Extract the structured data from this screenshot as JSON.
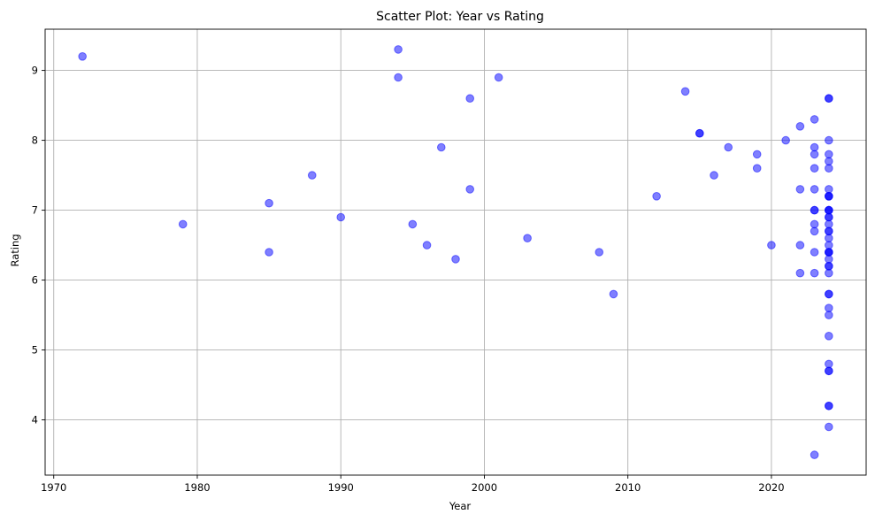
{
  "chart_data": {
    "type": "scatter",
    "title": "Scatter Plot: Year vs Rating",
    "xlabel": "Year",
    "ylabel": "Rating",
    "xlim": [
      1969.4,
      2026.6
    ],
    "ylim": [
      3.21,
      9.59
    ],
    "xticks": [
      1970,
      1980,
      1990,
      2000,
      2010,
      2020
    ],
    "yticks": [
      4,
      5,
      6,
      7,
      8,
      9
    ],
    "grid": true,
    "color": "#0000ff",
    "alpha": 0.5,
    "points": [
      [
        1972,
        9.2
      ],
      [
        1979,
        6.8
      ],
      [
        1985,
        7.1
      ],
      [
        1985,
        6.4
      ],
      [
        1988,
        7.5
      ],
      [
        1990,
        6.9
      ],
      [
        1994,
        9.3
      ],
      [
        1994,
        8.9
      ],
      [
        1995,
        6.8
      ],
      [
        1996,
        6.5
      ],
      [
        1997,
        7.9
      ],
      [
        1998,
        6.3
      ],
      [
        1999,
        8.6
      ],
      [
        1999,
        7.3
      ],
      [
        2001,
        8.9
      ],
      [
        2003,
        6.6
      ],
      [
        2008,
        6.4
      ],
      [
        2009,
        5.8
      ],
      [
        2012,
        7.2
      ],
      [
        2014,
        8.7
      ],
      [
        2015,
        8.1
      ],
      [
        2015,
        8.1
      ],
      [
        2016,
        7.5
      ],
      [
        2017,
        7.9
      ],
      [
        2019,
        7.8
      ],
      [
        2019,
        7.6
      ],
      [
        2020,
        6.5
      ],
      [
        2021,
        8.0
      ],
      [
        2022,
        8.2
      ],
      [
        2022,
        7.3
      ],
      [
        2022,
        6.5
      ],
      [
        2022,
        6.1
      ],
      [
        2023,
        8.3
      ],
      [
        2023,
        7.9
      ],
      [
        2023,
        7.8
      ],
      [
        2023,
        7.6
      ],
      [
        2023,
        7.3
      ],
      [
        2023,
        7.0
      ],
      [
        2023,
        7.0
      ],
      [
        2023,
        6.8
      ],
      [
        2023,
        6.7
      ],
      [
        2023,
        6.4
      ],
      [
        2023,
        6.1
      ],
      [
        2023,
        3.5
      ],
      [
        2024,
        8.6
      ],
      [
        2024,
        8.6
      ],
      [
        2024,
        8.0
      ],
      [
        2024,
        7.8
      ],
      [
        2024,
        7.7
      ],
      [
        2024,
        7.6
      ],
      [
        2024,
        7.3
      ],
      [
        2024,
        7.2
      ],
      [
        2024,
        7.2
      ],
      [
        2024,
        7.2
      ],
      [
        2024,
        7.0
      ],
      [
        2024,
        7.0
      ],
      [
        2024,
        7.0
      ],
      [
        2024,
        6.9
      ],
      [
        2024,
        6.9
      ],
      [
        2024,
        6.8
      ],
      [
        2024,
        6.7
      ],
      [
        2024,
        6.7
      ],
      [
        2024,
        6.6
      ],
      [
        2024,
        6.5
      ],
      [
        2024,
        6.4
      ],
      [
        2024,
        6.4
      ],
      [
        2024,
        6.4
      ],
      [
        2024,
        6.3
      ],
      [
        2024,
        6.2
      ],
      [
        2024,
        6.2
      ],
      [
        2024,
        6.1
      ],
      [
        2024,
        5.8
      ],
      [
        2024,
        5.8
      ],
      [
        2024,
        5.6
      ],
      [
        2024,
        5.5
      ],
      [
        2024,
        5.2
      ],
      [
        2024,
        4.8
      ],
      [
        2024,
        4.7
      ],
      [
        2024,
        4.7
      ],
      [
        2024,
        4.2
      ],
      [
        2024,
        4.2
      ],
      [
        2024,
        3.9
      ]
    ]
  }
}
